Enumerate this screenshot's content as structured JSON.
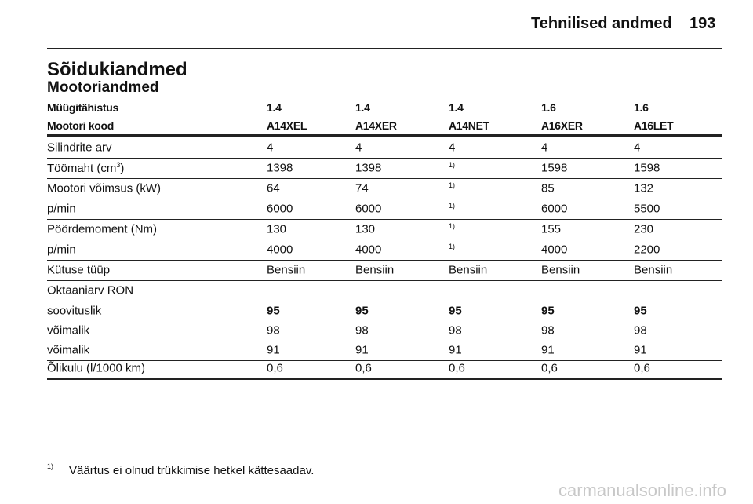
{
  "header": {
    "title": "Tehnilised andmed",
    "page": "193"
  },
  "section": {
    "title": "Sõidukiandmed",
    "subtitle": "Mootoriandmed"
  },
  "table": {
    "head": [
      [
        "Müügitähistus",
        "1.4",
        "1.4",
        "1.4",
        "1.6",
        "1.6"
      ],
      [
        "Mootori kood",
        "A14XEL",
        "A14XER",
        "A14NET",
        "A16XER",
        "A16LET"
      ]
    ],
    "rows": [
      [
        "Silindrite arv",
        "4",
        "4",
        "4",
        "4",
        "4"
      ],
      [
        {
          "text": "Töömaht (cm",
          "sup": "3",
          "tail": ")"
        },
        "1398",
        "1398",
        {
          "sup": "1)"
        },
        "1598",
        "1598"
      ],
      [
        "Mootori võimsus (kW)",
        "64",
        "74",
        {
          "sup": "1)"
        },
        "85",
        "132"
      ],
      [
        "p/min",
        "6000",
        "6000",
        {
          "sup": "1)"
        },
        "6000",
        "5500"
      ],
      [
        "Pöördemoment (Nm)",
        "130",
        "130",
        {
          "sup": "1)"
        },
        "155",
        "230"
      ],
      [
        "p/min",
        "4000",
        "4000",
        {
          "sup": "1)"
        },
        "4000",
        "2200"
      ],
      [
        "Kütuse tüüp",
        "Bensiin",
        "Bensiin",
        "Bensiin",
        "Bensiin",
        "Bensiin"
      ],
      [
        "Oktaaniarv RON"
      ],
      [
        "soovituslik",
        "95",
        "95",
        "95",
        "95",
        "95"
      ],
      [
        "võimalik",
        "98",
        "98",
        "98",
        "98",
        "98"
      ],
      [
        "võimalik",
        "91",
        "91",
        "91",
        "91",
        "91"
      ],
      [
        "Õlikulu (l/1000 km)",
        "0,6",
        "0,6",
        "0,6",
        "0,6",
        "0,6"
      ]
    ]
  },
  "footnote": {
    "marker": "1)",
    "text": "Väärtus ei olnud trükkimise hetkel kättesaadav."
  },
  "watermark": "carmanualsonline.info"
}
